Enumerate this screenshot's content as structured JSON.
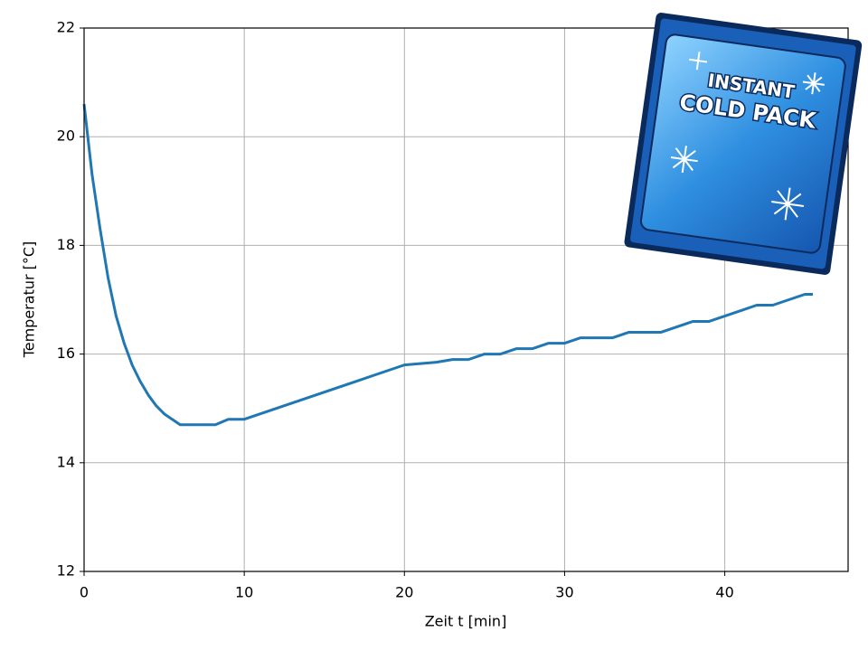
{
  "chart_data": {
    "type": "line",
    "xlabel": "Zeit t [min]",
    "ylabel": "Temperatur [°C]",
    "x": [
      0,
      0.5,
      1,
      1.5,
      2,
      2.5,
      3,
      3.5,
      4,
      4.5,
      5,
      5.5,
      6,
      7,
      8.2,
      9,
      10,
      11,
      12,
      13,
      14,
      15,
      16,
      17,
      18,
      19,
      20,
      22,
      23,
      24,
      25,
      26,
      27,
      28,
      29,
      30,
      31,
      33,
      34,
      36,
      37,
      38,
      39,
      40,
      41,
      42,
      43,
      44,
      45,
      45.5
    ],
    "series": [
      {
        "color": "#1f77b4",
        "values": [
          20.6,
          19.3,
          18.3,
          17.4,
          16.7,
          16.2,
          15.8,
          15.5,
          15.25,
          15.05,
          14.9,
          14.8,
          14.7,
          14.7,
          14.7,
          14.8,
          14.8,
          14.9,
          15.0,
          15.1,
          15.2,
          15.3,
          15.4,
          15.5,
          15.6,
          15.7,
          15.8,
          15.85,
          15.9,
          15.9,
          16.0,
          16.0,
          16.1,
          16.1,
          16.2,
          16.2,
          16.3,
          16.3,
          16.4,
          16.4,
          16.5,
          16.6,
          16.6,
          16.7,
          16.8,
          16.9,
          16.9,
          17.0,
          17.1,
          17.1
        ]
      }
    ],
    "xlim": [
      0,
      47.7
    ],
    "xticks": [
      0,
      10,
      20,
      30,
      40
    ],
    "ylim": [
      12,
      22
    ],
    "yticks": [
      12,
      14,
      16,
      18,
      20,
      22
    ],
    "grid": true,
    "annotations": [
      "INSTANT",
      "COLD PACK"
    ]
  }
}
